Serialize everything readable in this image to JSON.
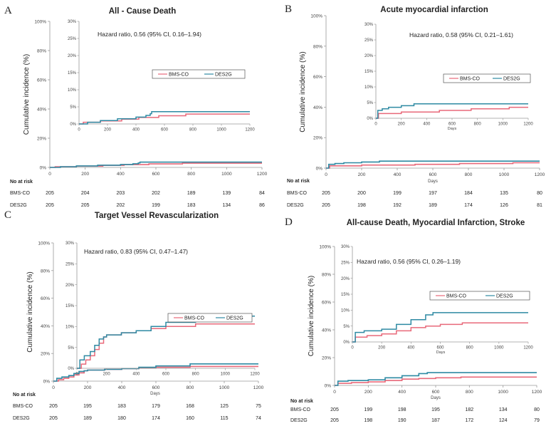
{
  "colors": {
    "bms": "#e8697a",
    "des": "#2e8aa3",
    "axis": "#9a9a9a",
    "text": "#222222",
    "tick": "#444444"
  },
  "chart_data": [
    {
      "type": "line",
      "panel": "A",
      "title": "All - Cause Death",
      "ylabel": "Cumulative incidence (%)",
      "xlabel": "",
      "x_ticks": [
        "0",
        "200",
        "400",
        "600",
        "800",
        "1000",
        "1200"
      ],
      "y_ticks": [
        "0%",
        "20%",
        "40%",
        "60%",
        "80%",
        "100%"
      ],
      "xlim": [
        0,
        1200
      ],
      "ylim": [
        0,
        100
      ],
      "series": [
        {
          "name": "BMS-CO",
          "x": [
            0,
            30,
            150,
            300,
            420,
            560,
            750,
            1200
          ],
          "y": [
            0,
            0.5,
            0.9,
            1.4,
            1.9,
            2.4,
            2.9,
            2.9
          ]
        },
        {
          "name": "DES2G",
          "x": [
            0,
            60,
            150,
            270,
            400,
            470,
            500,
            510,
            1200
          ],
          "y": [
            0,
            0.5,
            1.0,
            1.5,
            2.0,
            2.5,
            3.0,
            3.6,
            3.6
          ]
        }
      ],
      "inset": {
        "hazard": "Hazard ratio, 0.56 (95% CI, 0.16–1.94)",
        "x_ticks": [
          "0",
          "200",
          "400",
          "600",
          "800",
          "1000",
          "1200"
        ],
        "y_ticks": [
          "0%",
          "5%",
          "10%",
          "15%",
          "20%",
          "25%",
          "30%"
        ],
        "xlim": [
          0,
          1200
        ],
        "ylim": [
          0,
          30
        ],
        "legend": [
          "BMS-CO",
          "DES2G"
        ]
      },
      "risk": {
        "header": "No at risk",
        "rows": [
          {
            "label": "BMS-CO",
            "values": [
              "205",
              "204",
              "203",
              "202",
              "189",
              "139",
              "84"
            ]
          },
          {
            "label": "DES2G",
            "values": [
              "205",
              "205",
              "202",
              "199",
              "183",
              "134",
              "86"
            ]
          }
        ]
      }
    },
    {
      "type": "line",
      "panel": "B",
      "title": "Acute myocardial infarction",
      "ylabel": "Cumulative incidence (%)",
      "xlabel": "Days",
      "x_ticks": [
        "0",
        "200",
        "400",
        "600",
        "800",
        "1000",
        "1200"
      ],
      "y_ticks": [
        "0%",
        "20%",
        "40%",
        "60%",
        "80%",
        "100%"
      ],
      "xlim": [
        0,
        1200
      ],
      "ylim": [
        0,
        100
      ],
      "series": [
        {
          "name": "BMS-CO",
          "x": [
            0,
            20,
            200,
            500,
            750,
            1050,
            1200
          ],
          "y": [
            0,
            1.5,
            2.0,
            2.5,
            3.0,
            3.5,
            3.5
          ]
        },
        {
          "name": "DES2G",
          "x": [
            0,
            15,
            50,
            100,
            200,
            300,
            500,
            1200
          ],
          "y": [
            0,
            2.5,
            3.0,
            3.5,
            4.0,
            4.6,
            4.6,
            4.6
          ]
        }
      ],
      "inset": {
        "hazard": "Hazard ratio, 0.58 (95% CI, 0.21–1.61)",
        "x_ticks": [
          "0",
          "200",
          "400",
          "600",
          "800",
          "1000",
          "1200"
        ],
        "y_ticks": [
          "0%",
          "5%",
          "10%",
          "15%",
          "20%",
          "25%",
          "30%"
        ],
        "xlim": [
          0,
          1200
        ],
        "ylim": [
          0,
          30
        ],
        "legend": [
          "BMS-CO",
          "DES2G"
        ]
      },
      "risk": {
        "header": "No at risk",
        "rows": [
          {
            "label": "BMS-CO",
            "values": [
              "205",
              "200",
              "199",
              "197",
              "184",
              "135",
              "80"
            ]
          },
          {
            "label": "DES2G",
            "values": [
              "205",
              "198",
              "192",
              "189",
              "174",
              "126",
              "81"
            ]
          }
        ]
      }
    },
    {
      "type": "line",
      "panel": "C",
      "title": "Target Vessel Revascularization",
      "ylabel": "Cumulative incidence (%)",
      "xlabel": "Days",
      "x_ticks": [
        "0",
        "200",
        "400",
        "600",
        "800",
        "1000",
        "1200"
      ],
      "y_ticks": [
        "0%",
        "20%",
        "40%",
        "60%",
        "80%",
        "100%"
      ],
      "xlim": [
        0,
        1200
      ],
      "ylim": [
        0,
        100
      ],
      "series": [
        {
          "name": "BMS-CO",
          "x": [
            0,
            30,
            60,
            90,
            120,
            150,
            180,
            200,
            300,
            400,
            500,
            600,
            800,
            1200
          ],
          "y": [
            0,
            1,
            2,
            3,
            4.5,
            6,
            7.5,
            8,
            8.5,
            9,
            9.5,
            10,
            10.6,
            10.6
          ]
        },
        {
          "name": "DES2G",
          "x": [
            0,
            20,
            50,
            90,
            120,
            150,
            180,
            200,
            300,
            400,
            500,
            600,
            800,
            1200
          ],
          "y": [
            0,
            2,
            3,
            4,
            5.5,
            7,
            7.5,
            8,
            8.5,
            9,
            10,
            11,
            12.5,
            12.5
          ]
        }
      ],
      "inset": {
        "hazard": "Hazard ratio, 0.83 (95% CI, 0.47–1.47)",
        "x_ticks": [
          "0",
          "200",
          "400",
          "600",
          "800",
          "1000",
          "1200"
        ],
        "y_ticks": [
          "0%",
          "5%",
          "10%",
          "15%",
          "20%",
          "25%",
          "30%"
        ],
        "xlim": [
          0,
          1200
        ],
        "ylim": [
          0,
          30
        ],
        "legend": [
          "BMS-CO",
          "DES2G"
        ]
      },
      "risk": {
        "header": "No at risk",
        "rows": [
          {
            "label": "BMS-CO",
            "values": [
              "205",
              "195",
              "183",
              "179",
              "168",
              "125",
              "75"
            ]
          },
          {
            "label": "DES2G",
            "values": [
              "205",
              "189",
              "180",
              "174",
              "160",
              "115",
              "74"
            ]
          }
        ]
      }
    },
    {
      "type": "line",
      "panel": "D",
      "title": "All-cause Death, Myocardial Infarction, Stroke",
      "ylabel": "Cumulative incidence (%)",
      "xlabel": "Days",
      "x_ticks": [
        "0",
        "200",
        "400",
        "600",
        "800",
        "1000",
        "1200"
      ],
      "y_ticks": [
        "0%",
        "20%",
        "40%",
        "60%",
        "80%",
        "100%"
      ],
      "xlim": [
        0,
        1200
      ],
      "ylim": [
        0,
        100
      ],
      "series": [
        {
          "name": "BMS-CO",
          "x": [
            0,
            20,
            100,
            200,
            300,
            400,
            500,
            600,
            750,
            1200
          ],
          "y": [
            0,
            1.5,
            2.0,
            2.5,
            3.5,
            4.5,
            5.0,
            5.5,
            6.0,
            6.0
          ]
        },
        {
          "name": "DES2G",
          "x": [
            0,
            20,
            80,
            200,
            300,
            400,
            500,
            550,
            1200
          ],
          "y": [
            0,
            3.0,
            3.5,
            4.0,
            5.5,
            7.0,
            8.5,
            9.2,
            9.2
          ]
        }
      ],
      "inset": {
        "hazard": "Hazard ratio, 0.56 (95% CI, 0.26–1.19)",
        "x_ticks": [
          "0",
          "200",
          "400",
          "600",
          "800",
          "1000",
          "1200"
        ],
        "y_ticks": [
          "0%",
          "5%",
          "10%",
          "15%",
          "20%",
          "25%",
          "30%"
        ],
        "xlim": [
          0,
          1200
        ],
        "ylim": [
          0,
          30
        ],
        "legend": [
          "BMS-CO",
          "DES2G"
        ]
      },
      "risk": {
        "header": "No at risk",
        "rows": [
          {
            "label": "BMS-CO",
            "values": [
              "205",
              "199",
              "198",
              "195",
              "182",
              "134",
              "80"
            ]
          },
          {
            "label": "DES2G",
            "values": [
              "205",
              "198",
              "190",
              "187",
              "172",
              "124",
              "79"
            ]
          }
        ]
      }
    }
  ]
}
